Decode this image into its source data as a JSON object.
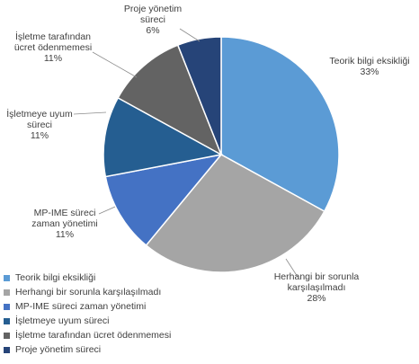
{
  "chart_data": {
    "type": "pie",
    "title": "",
    "slices": [
      {
        "label": "Teorik bilgi eksikliği",
        "value": 33,
        "value_label": "33%",
        "color": "#5b9bd5",
        "label_lines": [
          "Teorik bilgi eksikliği",
          "33%"
        ]
      },
      {
        "label": "Herhangi bir sorunla karşılaşılmadı",
        "value": 28,
        "value_label": "28%",
        "color": "#a5a5a5",
        "label_lines": [
          "Herhangi bir sorunla",
          "karşılaşılmadı",
          "28%"
        ]
      },
      {
        "label": "MP-IME süreci zaman yönetimi",
        "value": 11,
        "value_label": "11%",
        "color": "#4472c4",
        "label_lines": [
          "MP-IME süreci",
          "zaman yönetimi",
          "11%"
        ]
      },
      {
        "label": "İşletmeye uyum süreci",
        "value": 11,
        "value_label": "11%",
        "color": "#255e91",
        "label_lines": [
          "İşletmeye uyum",
          "süreci",
          "11%"
        ]
      },
      {
        "label": "İşletme tarafından ücret ödenmemesi",
        "value": 11,
        "value_label": "11%",
        "color": "#636363",
        "label_lines": [
          "İşletme tarafından",
          "ücret ödenmemesi",
          "11%"
        ]
      },
      {
        "label": "Proje yönetim süreci",
        "value": 6,
        "value_label": "6%",
        "color": "#264478",
        "label_lines": [
          "Proje yönetim",
          "süreci",
          "6%"
        ]
      }
    ],
    "legend": {
      "placement": "bottom-left",
      "entries": [
        "Teorik bilgi eksikliği",
        "Herhangi bir sorunla karşılaşılmadı",
        "MP-IME süreci zaman yönetimi",
        "İşletmeye uyum süreci",
        "İşletme tarafından ücret ödenmemesi",
        "Proje yönetim süreci"
      ]
    }
  }
}
